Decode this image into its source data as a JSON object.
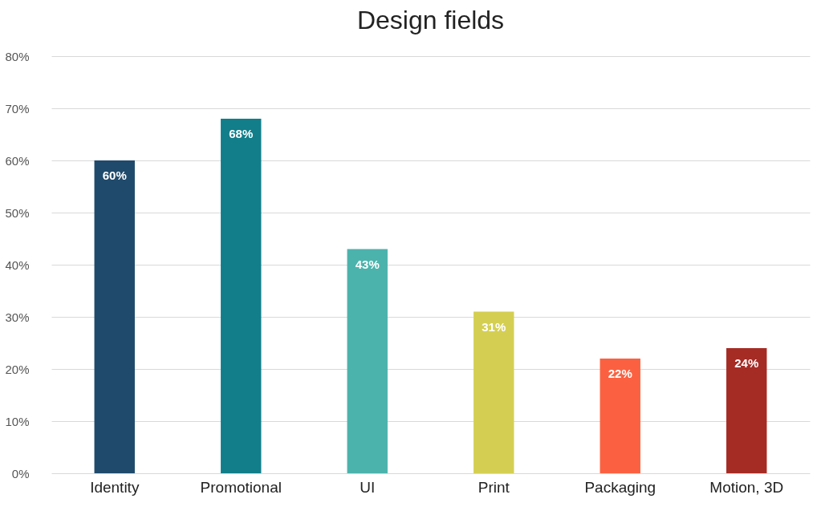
{
  "chart_data": {
    "type": "bar",
    "title": "Design fields",
    "categories": [
      "Identity",
      "Promotional",
      "UI",
      "Print",
      "Packaging",
      "Motion, 3D"
    ],
    "values": [
      60,
      68,
      43,
      31,
      22,
      24
    ],
    "colors": [
      "#1f4a6b",
      "#117e8a",
      "#4bb3ac",
      "#d4cf52",
      "#fb6141",
      "#a52b25"
    ],
    "value_labels": [
      "60%",
      "68%",
      "43%",
      "31%",
      "22%",
      "24%"
    ],
    "ylim": [
      0,
      80
    ],
    "yticks": [
      {
        "value": 0,
        "label": "0%"
      },
      {
        "value": 10,
        "label": "10%"
      },
      {
        "value": 20,
        "label": "20%"
      },
      {
        "value": 30,
        "label": "30%"
      },
      {
        "value": 40,
        "label": "40%"
      },
      {
        "value": 50,
        "label": "50%"
      },
      {
        "value": 60,
        "label": "60%"
      },
      {
        "value": 70,
        "label": "70%"
      },
      {
        "value": 80,
        "label": "80%"
      }
    ],
    "grid": "y"
  }
}
